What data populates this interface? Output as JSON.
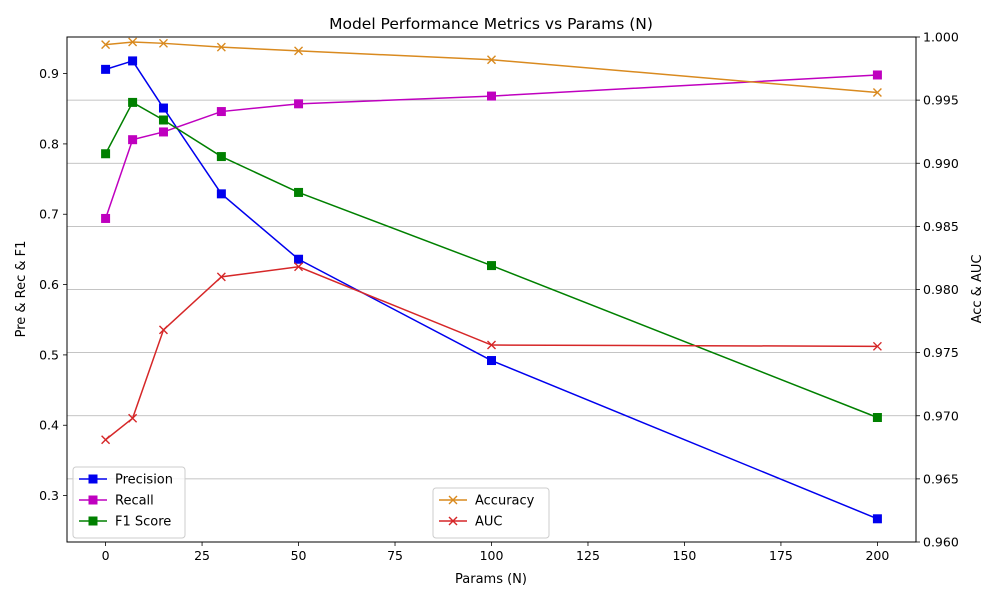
{
  "chart_data": {
    "type": "line",
    "title": "Model Performance Metrics vs Params (N)",
    "xlabel": "Params (N)",
    "ylabel_left": "Pre & Rec & F1",
    "ylabel_right": "Acc & AUC",
    "x": [
      0,
      7,
      15,
      30,
      50,
      100,
      200
    ],
    "xlim": [
      -10,
      210
    ],
    "xticks": [
      0,
      25,
      50,
      75,
      100,
      125,
      150,
      175,
      200
    ],
    "ylim_left": [
      0.234,
      0.952
    ],
    "yticks_left": [
      0.3,
      0.4,
      0.5,
      0.6,
      0.7,
      0.8,
      0.9
    ],
    "ylim_right": [
      0.96,
      1.0
    ],
    "yticks_right": [
      0.96,
      0.965,
      0.97,
      0.975,
      0.98,
      0.985,
      0.99,
      0.995,
      1.0
    ],
    "grid": "horizontal lines at right-axis ticks",
    "legend_left_placement": "lower-left",
    "legend_right_placement": "lower-center",
    "series_left": [
      {
        "name": "Precision",
        "color": "#0000ee",
        "marker": "square",
        "values": [
          0.906,
          0.918,
          0.851,
          0.729,
          0.636,
          0.492,
          0.267
        ]
      },
      {
        "name": "Recall",
        "color": "#bf00bf",
        "marker": "square",
        "values": [
          0.694,
          0.806,
          0.817,
          0.846,
          0.857,
          0.868,
          0.898
        ]
      },
      {
        "name": "F1 Score",
        "color": "#008000",
        "marker": "square",
        "values": [
          0.786,
          0.859,
          0.834,
          0.782,
          0.731,
          0.627,
          0.411
        ]
      }
    ],
    "series_right": [
      {
        "name": "Accuracy",
        "color": "#d98a1f",
        "marker": "x",
        "values": [
          0.9994,
          0.9996,
          0.9995,
          0.9992,
          0.9989,
          0.9982,
          0.9956
        ]
      },
      {
        "name": "AUC",
        "color": "#d62728",
        "marker": "x",
        "values": [
          0.9681,
          0.9698,
          0.9768,
          0.981,
          0.9818,
          0.9756,
          0.9755
        ]
      }
    ]
  }
}
